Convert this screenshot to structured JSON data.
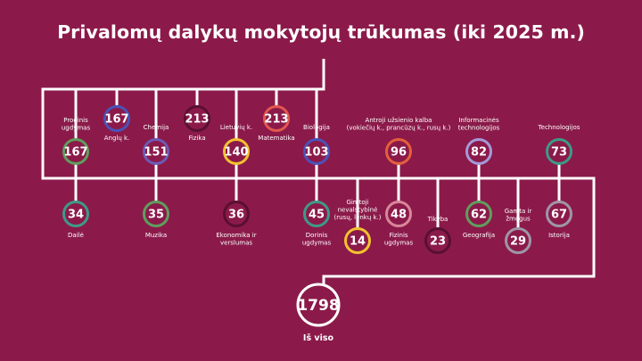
{
  "title": "Privalomų dalykų mokytojų trūkumas (iki 2025 m.)",
  "colors": {
    "background": "#8b1a4a",
    "line": "#ffffff",
    "green": "#5f9e5d",
    "blue": "#4a53b8",
    "purple": "#6c5bb5",
    "maroon": "#5a1030",
    "yellow": "#f2c230",
    "red": "#e2584f",
    "orange": "#e3603c",
    "pink": "#d9869a",
    "teal": "#3d9a88",
    "lavender": "#a49ad9",
    "grey": "#9f96a8"
  },
  "total": {
    "value": "1798",
    "label": "Iš viso"
  },
  "nodes": [
    {
      "id": "pradinis",
      "value": "167",
      "label": [
        "Prodinis",
        "ugdymas"
      ],
      "color": "green"
    },
    {
      "id": "anglu",
      "value": "167",
      "label": [
        "Anglų k."
      ],
      "color": "blue"
    },
    {
      "id": "chemija",
      "value": "151",
      "label": [
        "Chemija"
      ],
      "color": "purple"
    },
    {
      "id": "fizika",
      "value": "213",
      "label": [
        "Fizika"
      ],
      "color": "maroon"
    },
    {
      "id": "lietuviu",
      "value": "140",
      "label": [
        "Lietuvių k."
      ],
      "color": "yellow"
    },
    {
      "id": "matematika",
      "value": "213",
      "label": [
        "Matematika"
      ],
      "color": "red"
    },
    {
      "id": "biologija",
      "value": "103",
      "label": [
        "Biologija"
      ],
      "color": "blue"
    },
    {
      "id": "antroji",
      "value": "96",
      "label": [
        "Antroji užsienio kalba",
        "(vokiečių k., prancūzų k., rusų k.)"
      ],
      "color": "orange"
    },
    {
      "id": "informacines",
      "value": "82",
      "label": [
        "Informacinės",
        "technologijos"
      ],
      "color": "lavender"
    },
    {
      "id": "technologijos",
      "value": "73",
      "label": [
        "Technologijos"
      ],
      "color": "teal"
    },
    {
      "id": "daile",
      "value": "34",
      "label": [
        "Dailė"
      ],
      "color": "teal"
    },
    {
      "id": "muzika",
      "value": "35",
      "label": [
        "Muzika"
      ],
      "color": "green"
    },
    {
      "id": "ekonomika",
      "value": "36",
      "label": [
        "Ekonomika ir",
        "verslumas"
      ],
      "color": "maroon"
    },
    {
      "id": "dorinis",
      "value": "45",
      "label": [
        "Dorinis",
        "ugdymas"
      ],
      "color": "teal"
    },
    {
      "id": "gimtoji",
      "value": "14",
      "label": [
        "Gimtoji",
        "nevalstybinė",
        "(rusų, lenkų k.)"
      ],
      "color": "yellow"
    },
    {
      "id": "fizinis",
      "value": "48",
      "label": [
        "Fizinis",
        "ugdymas"
      ],
      "color": "pink"
    },
    {
      "id": "tikyba",
      "value": "23",
      "label": [
        "Tikyba"
      ],
      "color": "maroon"
    },
    {
      "id": "geografija",
      "value": "62",
      "label": [
        "Geografija"
      ],
      "color": "green"
    },
    {
      "id": "gamta",
      "value": "29",
      "label": [
        "Gamta ir",
        "žmogus"
      ],
      "color": "grey"
    },
    {
      "id": "istorija",
      "value": "67",
      "label": [
        "Istorija"
      ],
      "color": "grey"
    }
  ]
}
